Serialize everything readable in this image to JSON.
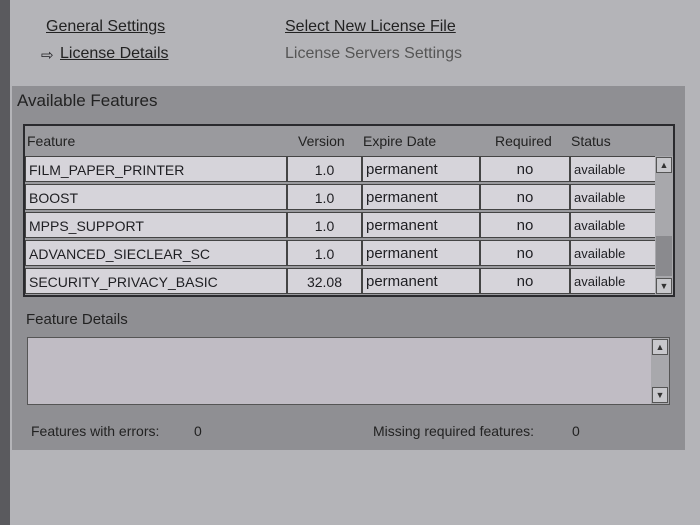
{
  "nav": {
    "general_settings": "General Settings",
    "select_license_file": "Select New License File",
    "license_details": "License Details",
    "license_servers": "License Servers Settings",
    "current_marker_icon": "arrow-right-icon"
  },
  "available": {
    "title": "Available Features",
    "columns": [
      "Feature",
      "Version",
      "Expire Date",
      "Required",
      "Status"
    ],
    "rows": [
      [
        "FILM_PAPER_PRINTER",
        "1.0",
        "permanent",
        "no",
        "available"
      ],
      [
        "BOOST",
        "1.0",
        "permanent",
        "no",
        "available"
      ],
      [
        "MPPS_SUPPORT",
        "1.0",
        "permanent",
        "no",
        "available"
      ],
      [
        "ADVANCED_SIECLEAR_SC",
        "1.0",
        "permanent",
        "no",
        "available"
      ],
      [
        "SECURITY_PRIVACY_BASIC",
        "32.08",
        "permanent",
        "no",
        "available"
      ]
    ]
  },
  "details": {
    "title": "Feature Details"
  },
  "footer": {
    "errors_label": "Features with errors:",
    "errors_value": "0",
    "missing_label": "Missing required features:",
    "missing_value": "0"
  }
}
